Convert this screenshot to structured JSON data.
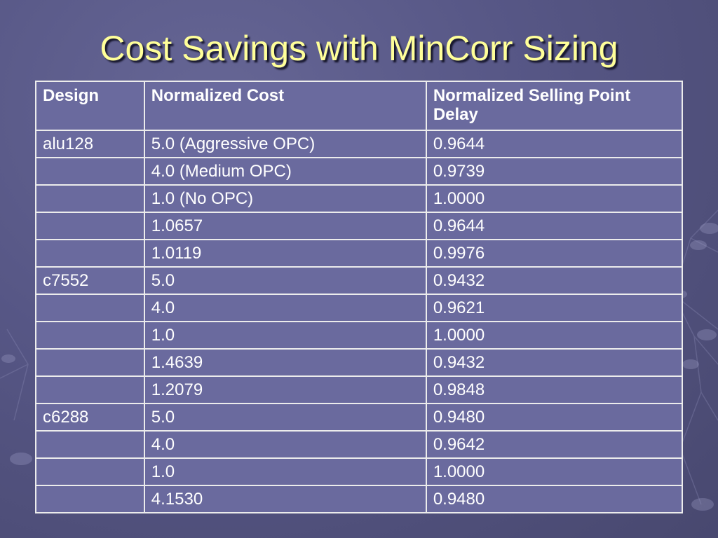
{
  "slide": {
    "title": "Cost Savings with MinCorr Sizing"
  },
  "table": {
    "headers": [
      "Design",
      "Normalized Cost",
      "Normalized Selling Point Delay"
    ],
    "rows": [
      [
        "alu128",
        "5.0 (Aggressive OPC)",
        "0.9644"
      ],
      [
        "",
        "4.0 (Medium OPC)",
        "0.9739"
      ],
      [
        "",
        "1.0 (No OPC)",
        "1.0000"
      ],
      [
        "",
        "1.0657",
        "0.9644"
      ],
      [
        "",
        "1.0119",
        "0.9976"
      ],
      [
        "c7552",
        "5.0",
        "0.9432"
      ],
      [
        "",
        "4.0",
        "0.9621"
      ],
      [
        "",
        "1.0",
        "1.0000"
      ],
      [
        "",
        "1.4639",
        "0.9432"
      ],
      [
        "",
        "1.2079",
        "0.9848"
      ],
      [
        "c6288",
        "5.0",
        "0.9480"
      ],
      [
        "",
        "4.0",
        "0.9642"
      ],
      [
        "",
        "1.0",
        "1.0000"
      ],
      [
        "",
        "4.1530",
        "0.9480"
      ]
    ]
  },
  "colors": {
    "background": "#565685",
    "title": "#ffff99",
    "cell": "#6a6a9e",
    "border": "#ececec",
    "text": "#ffffff"
  }
}
